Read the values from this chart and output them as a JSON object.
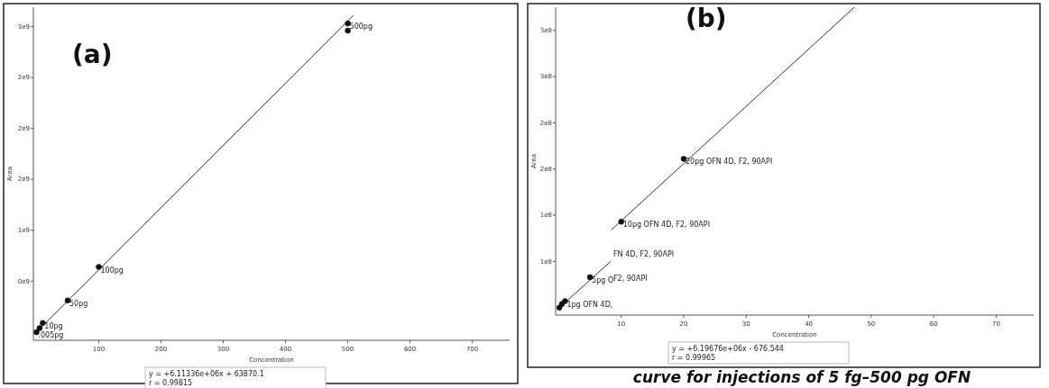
{
  "chart_data": [
    {
      "type": "scatter",
      "title": "(a)",
      "xlabel": "Concentration",
      "ylabel": "Area",
      "xlim": [
        -5,
        760
      ],
      "ylim": [
        -80000000,
        3190000000
      ],
      "xticks": [
        100,
        200,
        300,
        400,
        500,
        600,
        700
      ],
      "yticks": [
        {
          "value": 500000000,
          "label": "0e9"
        },
        {
          "value": 1000000000,
          "label": "1e9"
        },
        {
          "value": 1500000000,
          "label": "2e9"
        },
        {
          "value": 2000000000,
          "label": "2e9"
        },
        {
          "value": 2500000000,
          "label": "2e9"
        },
        {
          "value": 3000000000,
          "label": "3e9"
        }
      ],
      "marker": "circle",
      "grid": false,
      "series": [
        {
          "type": "line",
          "marker": "none",
          "color": "#333333",
          "x": [
            0,
            509
          ],
          "values": [
            0,
            3110000000
          ]
        },
        {
          "color": "#111111",
          "x": [
            0.005,
            5,
            10,
            50,
            100,
            500,
            500
          ],
          "values": [
            0,
            40000000,
            90000000,
            310000000,
            640000000,
            3030000000,
            2960000000
          ]
        }
      ],
      "annotations": [
        {
          "text": ".005pg",
          "x": 0.005,
          "y": 0
        },
        {
          "text": "10pg",
          "x": 10,
          "y": 90000000
        },
        {
          "text": "50pg",
          "x": 50,
          "y": 310000000
        },
        {
          "text": "100pg",
          "x": 100,
          "y": 640000000
        },
        {
          "text": "500pg",
          "x": 500,
          "y": 3030000000
        },
        "y = +6.11336e+06x + 63870.1",
        "r = 0.99815"
      ]
    },
    {
      "type": "scatter",
      "title": "(b)",
      "xlabel": "Concentration",
      "ylabel": "Area",
      "xlim": [
        -0.5,
        76
      ],
      "ylim": [
        42000000,
        375000000
      ],
      "xticks": [
        10,
        20,
        30,
        40,
        50,
        60,
        70
      ],
      "yticks": [
        {
          "value": 100000000,
          "label": "1e8"
        },
        {
          "value": 150000000,
          "label": "1e8"
        },
        {
          "value": 200000000,
          "label": "2e8"
        },
        {
          "value": 250000000,
          "label": "2e8"
        },
        {
          "value": 300000000,
          "label": "3e8"
        },
        {
          "value": 350000000,
          "label": "3e8"
        }
      ],
      "marker": "circle",
      "grid": false,
      "series": [
        {
          "type": "line",
          "marker": "none",
          "color": "#333333",
          "x": [
            0.1,
            8.3,
            8.35,
            8.4,
            47.3
          ],
          "values": [
            50000000,
            100000000,
            null,
            134000000,
            375000000
          ]
        },
        {
          "color": "#111111",
          "x": [
            0.1,
            0.5,
            1,
            5,
            10,
            20
          ],
          "values": [
            50000000,
            54000000,
            57000000,
            83000000,
            143000000,
            211000000
          ]
        }
      ],
      "annotations": [
        {
          "text": "1pg OFN 4D,",
          "x": 1,
          "y": 57000000
        },
        {
          "text": "5pg O",
          "x": 5,
          "y": 83000000
        },
        "FN 4D, F2, 90API",
        "F2, 90API",
        {
          "text": "10pg OFN 4D, F2, 90API",
          "x": 10,
          "y": 143000000
        },
        {
          "text": "20pg OFN 4D, F2, 90API",
          "x": 20,
          "y": 211000000
        },
        "y = +6.19676e+06x - 676.544",
        "r = 0.99965",
        "curve for injections of 5 fg–500 pg OFN"
      ]
    }
  ]
}
